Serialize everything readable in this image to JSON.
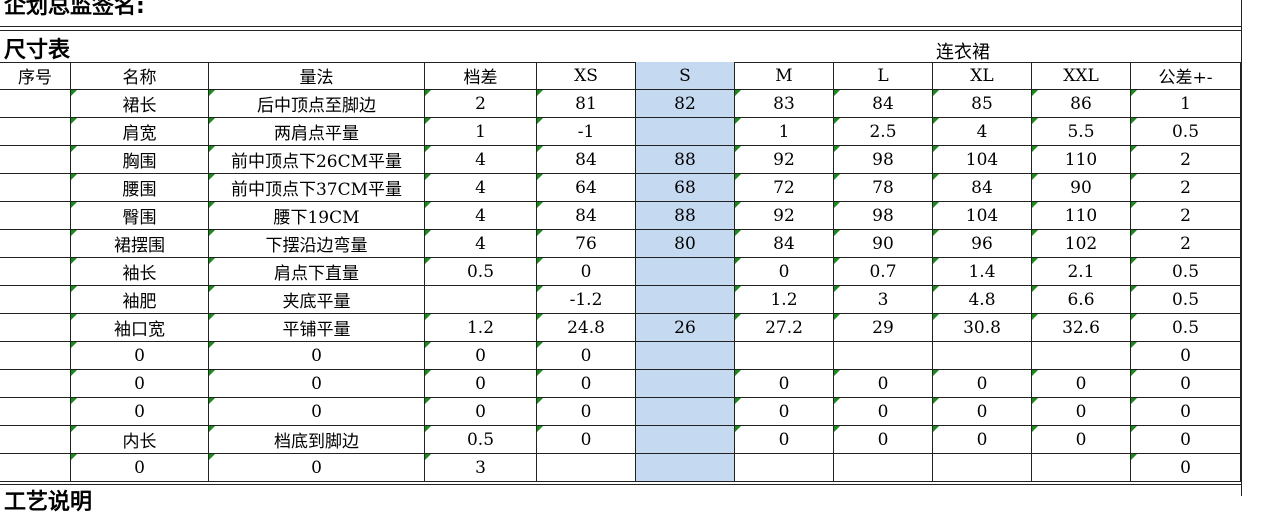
{
  "top_text": "企划总监签名:",
  "title": "尺寸表",
  "subtitle": "连衣裙",
  "table": {
    "header": [
      "序号",
      "名称",
      "量法",
      "档差",
      "XS",
      "S",
      "M",
      "L",
      "XL",
      "XXL",
      "公差+-"
    ],
    "rows": [
      [
        null,
        "裙长",
        "后中顶点至脚边",
        "2",
        "81",
        "82",
        "83",
        "84",
        "85",
        "86",
        "1"
      ],
      [
        null,
        "肩宽",
        "两肩点平量",
        "1",
        "-1",
        null,
        "1",
        "2.5",
        "4",
        "5.5",
        "0.5"
      ],
      [
        null,
        "胸围",
        "前中顶点下26CM平量",
        "4",
        "84",
        "88",
        "92",
        "98",
        "104",
        "110",
        "2"
      ],
      [
        null,
        "腰围",
        "前中顶点下37CM平量",
        "4",
        "64",
        "68",
        "72",
        "78",
        "84",
        "90",
        "2"
      ],
      [
        null,
        "臀围",
        "腰下19CM",
        "4",
        "84",
        "88",
        "92",
        "98",
        "104",
        "110",
        "2"
      ],
      [
        null,
        "裙摆围",
        "下摆沿边弯量",
        "4",
        "76",
        "80",
        "84",
        "90",
        "96",
        "102",
        "2"
      ],
      [
        null,
        "袖长",
        "肩点下直量",
        "0.5",
        "0",
        null,
        "0",
        "0.7",
        "1.4",
        "2.1",
        "0.5"
      ],
      [
        null,
        "袖肥",
        "夹底平量",
        null,
        "-1.2",
        null,
        "1.2",
        "3",
        "4.8",
        "6.6",
        "0.5"
      ],
      [
        null,
        "袖口宽",
        "平铺平量",
        "1.2",
        "24.8",
        "26",
        "27.2",
        "29",
        "30.8",
        "32.6",
        "0.5"
      ],
      [
        null,
        "0",
        "0",
        "0",
        "0",
        null,
        null,
        null,
        null,
        null,
        "0"
      ],
      [
        null,
        "0",
        "0",
        "0",
        "0",
        null,
        "0",
        "0",
        "0",
        "0",
        "0"
      ],
      [
        null,
        "0",
        "0",
        "0",
        "0",
        null,
        "0",
        "0",
        "0",
        "0",
        "0"
      ],
      [
        null,
        "内长",
        "档底到脚边",
        "0.5",
        "0",
        null,
        "0",
        "0",
        "0",
        "0",
        "0"
      ],
      [
        null,
        "0",
        "0",
        "3",
        null,
        null,
        null,
        null,
        null,
        null,
        "0"
      ]
    ]
  },
  "bottom_text": "工艺说明"
}
